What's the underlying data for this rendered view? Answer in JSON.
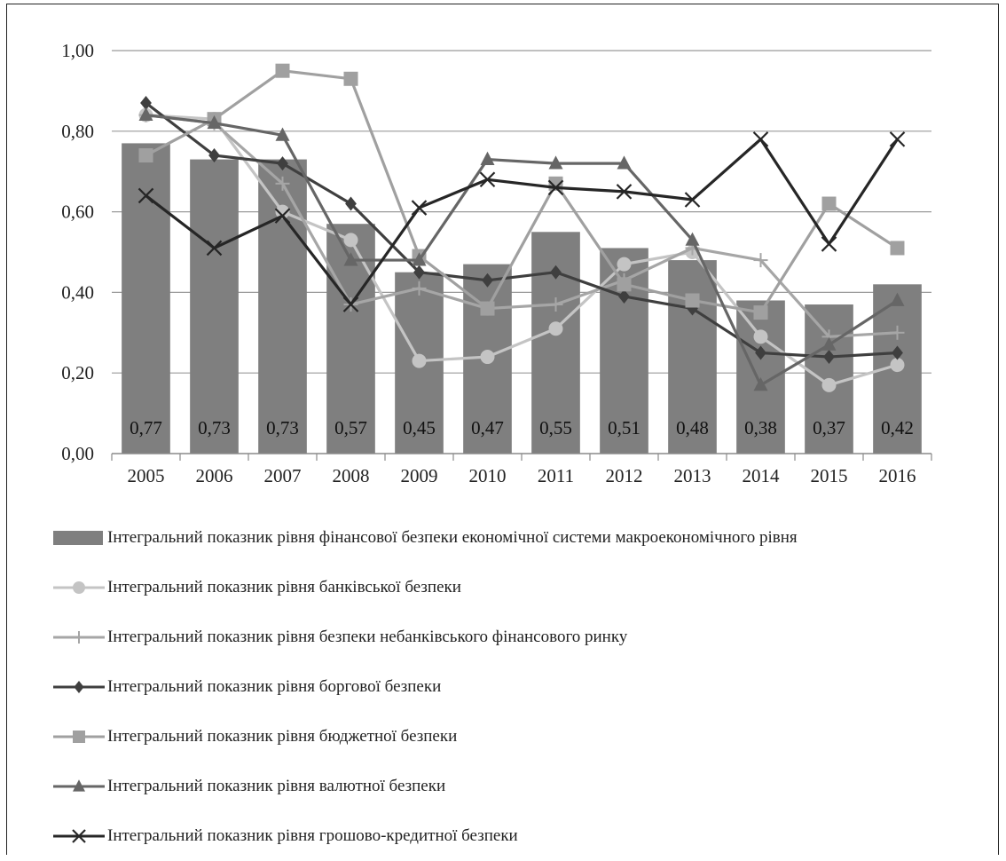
{
  "chart_data": {
    "type": "bar",
    "title": "",
    "xlabel": "",
    "ylabel": "",
    "categories": [
      "2005",
      "2006",
      "2007",
      "2008",
      "2009",
      "2010",
      "2011",
      "2012",
      "2013",
      "2014",
      "2015",
      "2016"
    ],
    "ylim": [
      0,
      1
    ],
    "yticks": [
      "0,00",
      "0,20",
      "0,40",
      "0,60",
      "0,80",
      "1,00"
    ],
    "grid": true,
    "legend_position": "bottom",
    "bar_series": {
      "name": "Інтегральний показник рівня фінансової безпеки економічної системи макроекономічного рівня",
      "color": "#7f7f7f",
      "values": [
        0.77,
        0.73,
        0.73,
        0.57,
        0.45,
        0.47,
        0.55,
        0.51,
        0.48,
        0.38,
        0.37,
        0.42
      ],
      "labels": [
        "0,77",
        "0,73",
        "0,73",
        "0,57",
        "0,45",
        "0,47",
        "0,55",
        "0,51",
        "0,48",
        "0,38",
        "0,37",
        "0,42"
      ]
    },
    "line_series": [
      {
        "name": "Інтегральний показник рівня банківської безпеки",
        "color": "#c4c4c4",
        "marker": "circle",
        "values": [
          0.84,
          0.83,
          0.6,
          0.53,
          0.23,
          0.24,
          0.31,
          0.47,
          0.5,
          0.29,
          0.17,
          0.22
        ]
      },
      {
        "name": "Інтегральний показник рівня безпеки небанківського фінансового  ринку",
        "color": "#a6a6a6",
        "marker": "plus",
        "values": [
          0.84,
          0.82,
          0.67,
          0.37,
          0.41,
          0.36,
          0.37,
          0.43,
          0.51,
          0.48,
          0.29,
          0.3
        ]
      },
      {
        "name": "Інтегральний показник рівня боргової безпеки",
        "color": "#3f3f3f",
        "marker": "diamond",
        "values": [
          0.87,
          0.74,
          0.72,
          0.62,
          0.45,
          0.43,
          0.45,
          0.39,
          0.36,
          0.25,
          0.24,
          0.25
        ]
      },
      {
        "name": "Інтегральний показник рівня бюджетної безпеки",
        "color": "#a0a0a0",
        "marker": "square",
        "values": [
          0.74,
          0.83,
          0.95,
          0.93,
          0.49,
          0.36,
          0.67,
          0.42,
          0.38,
          0.35,
          0.62,
          0.51
        ]
      },
      {
        "name": "Інтегральний показник рівня валютної безпеки",
        "color": "#666666",
        "marker": "triangle",
        "values": [
          0.84,
          0.82,
          0.79,
          0.48,
          0.48,
          0.73,
          0.72,
          0.72,
          0.53,
          0.17,
          0.27,
          0.38
        ]
      },
      {
        "name": "Інтегральний показник рівня грошово-кредитної безпеки",
        "color": "#262626",
        "marker": "x",
        "values": [
          0.64,
          0.51,
          0.59,
          0.37,
          0.61,
          0.68,
          0.66,
          0.65,
          0.63,
          0.78,
          0.52,
          0.78
        ]
      }
    ]
  }
}
